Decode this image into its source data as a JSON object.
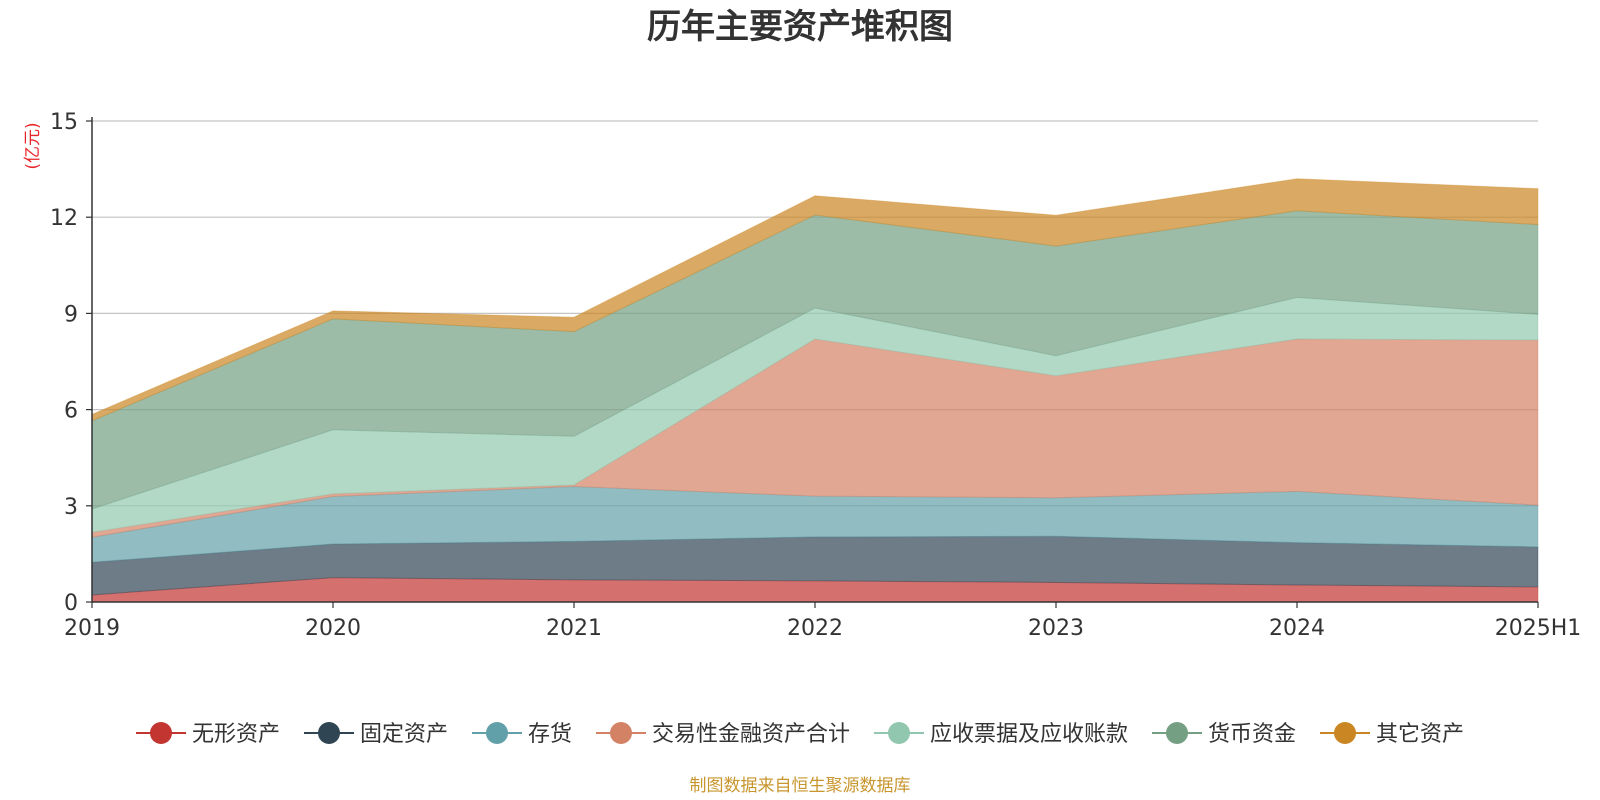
{
  "chart_data": {
    "type": "area",
    "stacked": true,
    "title": "历年主要资产堆积图",
    "ylabel": "(亿元)",
    "ylim": [
      0,
      15
    ],
    "y_ticks": [
      0,
      3,
      6,
      9,
      12,
      15
    ],
    "y_tick_labels": [
      "0",
      "3",
      "6",
      "9",
      "12",
      "15"
    ],
    "categories": [
      "2019",
      "2020",
      "2021",
      "2022",
      "2023",
      "2024",
      "2025H1"
    ],
    "grid": true,
    "legend_position": "bottom",
    "series": [
      {
        "name": "无形资产",
        "color": "#c23531",
        "values": [
          0.22,
          0.76,
          0.69,
          0.66,
          0.61,
          0.53,
          0.47
        ]
      },
      {
        "name": "固定资产",
        "color": "#2f4554",
        "values": [
          1.02,
          1.05,
          1.2,
          1.37,
          1.44,
          1.32,
          1.25
        ]
      },
      {
        "name": "存货",
        "color": "#61a0a8",
        "values": [
          0.78,
          1.48,
          1.71,
          1.27,
          1.2,
          1.6,
          1.3
        ]
      },
      {
        "name": "交易性金融资产合计",
        "color": "#d48265",
        "values": [
          0.15,
          0.08,
          0.05,
          4.9,
          3.8,
          4.75,
          5.15
        ]
      },
      {
        "name": "应收票据及应收账款",
        "color": "#91c7ae",
        "values": [
          0.73,
          2.0,
          1.52,
          0.97,
          0.63,
          1.3,
          0.8
        ]
      },
      {
        "name": "货币资金",
        "color": "#749f83",
        "values": [
          2.75,
          3.46,
          3.26,
          2.9,
          3.42,
          2.7,
          2.8
        ]
      },
      {
        "name": "其它资产",
        "color": "#ca8622",
        "values": [
          0.2,
          0.25,
          0.45,
          0.6,
          0.96,
          1.0,
          1.12
        ]
      }
    ]
  },
  "footer": {
    "source": "制图数据来自恒生聚源数据库"
  }
}
